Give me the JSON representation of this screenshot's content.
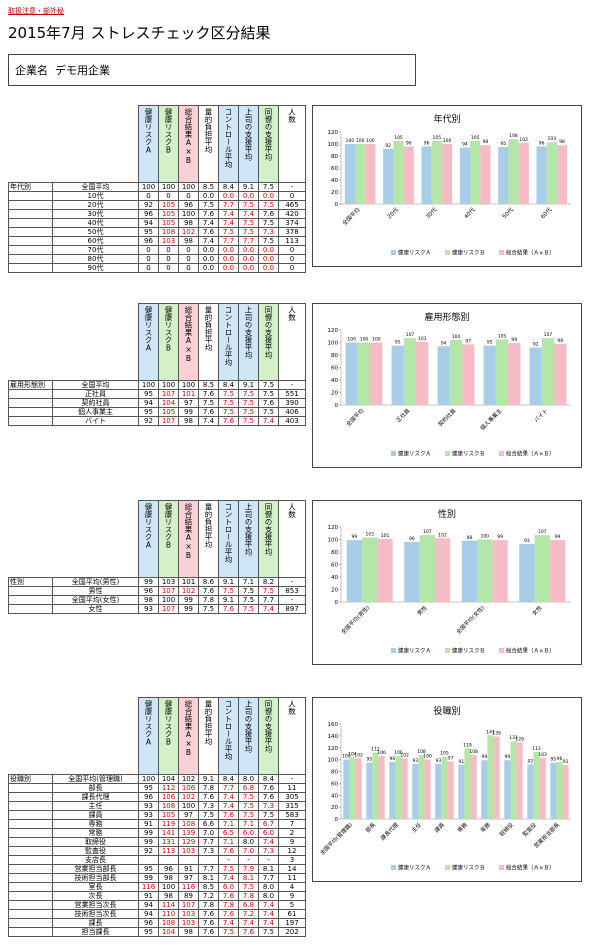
{
  "header": {
    "notice": "取扱注意・部外秘",
    "title": "2015年7月 ストレスチェック区分結果",
    "company_label": "企業名",
    "company": "デモ用企業"
  },
  "sections": [
    {
      "columns": [
        "健康リスクA",
        "健康リスクB",
        "総合結果A×B",
        "量的負担平均",
        "コントロール平均",
        "上司の支援平均",
        "同僚の支援平均",
        "人数"
      ],
      "rows": [
        {
          "group": "年代別",
          "name": "全国平均",
          "cells": [
            "100",
            "100",
            "100",
            "8.5",
            "8.4",
            "9.1",
            "7.5",
            "-"
          ],
          "red": []
        },
        {
          "name": "10代",
          "cells": [
            "0",
            "0",
            "0",
            "0.0",
            "0.0",
            "0.0",
            "0.0",
            "0"
          ],
          "red": [
            4,
            5,
            6
          ]
        },
        {
          "name": "20代",
          "cells": [
            "92",
            "105",
            "96",
            "7.5",
            "7.7",
            "7.5",
            "7.5",
            "465"
          ],
          "red": [
            1,
            4,
            5,
            6
          ]
        },
        {
          "name": "30代",
          "cells": [
            "96",
            "105",
            "100",
            "7.6",
            "7.4",
            "7.4",
            "7.6",
            "420"
          ],
          "red": [
            1,
            4,
            5
          ]
        },
        {
          "name": "40代",
          "cells": [
            "94",
            "105",
            "98",
            "7.4",
            "7.4",
            "7.5",
            "7.5",
            "374"
          ],
          "red": [
            1,
            4,
            5
          ]
        },
        {
          "name": "50代",
          "cells": [
            "95",
            "108",
            "102",
            "7.6",
            "7.5",
            "7.5",
            "7.3",
            "378"
          ],
          "red": [
            1,
            2,
            4,
            5,
            6
          ]
        },
        {
          "name": "60代",
          "cells": [
            "96",
            "103",
            "98",
            "7.4",
            "7.7",
            "7.7",
            "7.5",
            "113"
          ],
          "red": [
            1,
            4,
            5
          ]
        },
        {
          "name": "70代",
          "cells": [
            "0",
            "0",
            "0",
            "0.0",
            "0.0",
            "0.0",
            "0.0",
            "0"
          ],
          "red": [
            4,
            5,
            6
          ]
        },
        {
          "name": "80代",
          "cells": [
            "0",
            "0",
            "0",
            "0.0",
            "0.0",
            "0.0",
            "0.0",
            "0"
          ],
          "red": [
            4,
            5,
            6
          ]
        },
        {
          "name": "90代",
          "cells": [
            "0",
            "0",
            "0",
            "0.0",
            "0.0",
            "0.0",
            "0.0",
            "0"
          ],
          "red": [
            4,
            5,
            6
          ]
        }
      ]
    },
    {
      "columns": [
        "健康リスクA",
        "健康リスクB",
        "総合結果A×B",
        "量的負担平均",
        "コントロール平均",
        "上司の支援平均",
        "同僚の支援平均",
        "人数"
      ],
      "rows": [
        {
          "group": "雇用形態別",
          "name": "全国平均",
          "cells": [
            "100",
            "100",
            "100",
            "8.5",
            "8.4",
            "9.1",
            "7.5",
            "-"
          ],
          "red": []
        },
        {
          "name": "正社員",
          "cells": [
            "95",
            "107",
            "101",
            "7.6",
            "7.5",
            "7.5",
            "7.5",
            "551"
          ],
          "red": [
            1,
            2,
            4,
            5
          ]
        },
        {
          "name": "契約社員",
          "cells": [
            "94",
            "104",
            "97",
            "7.5",
            "7.5",
            "7.5",
            "7.6",
            "390"
          ],
          "red": [
            1,
            4,
            5
          ]
        },
        {
          "name": "個人事業主",
          "cells": [
            "95",
            "105",
            "99",
            "7.6",
            "7.5",
            "7.5",
            "7.5",
            "406"
          ],
          "red": [
            1,
            4,
            5
          ]
        },
        {
          "name": "バイト",
          "cells": [
            "92",
            "107",
            "98",
            "7.4",
            "7.6",
            "7.5",
            "7.4",
            "403"
          ],
          "red": [
            1,
            4,
            5,
            6
          ]
        }
      ]
    },
    {
      "columns": [
        "健康リスクA",
        "健康リスクB",
        "総合結果A×B",
        "量的負担平均",
        "コントロール平均",
        "上司の支援平均",
        "同僚の支援平均",
        "人数"
      ],
      "rows": [
        {
          "group": "性別",
          "name": "全国平均(男性)",
          "cells": [
            "99",
            "103",
            "101",
            "8.6",
            "9.1",
            "7.1",
            "8.2",
            "-"
          ],
          "red": []
        },
        {
          "name": "男性",
          "cells": [
            "96",
            "107",
            "102",
            "7.6",
            "7.5",
            "7.5",
            "7.5",
            "853"
          ],
          "red": [
            1,
            2,
            4,
            6
          ]
        },
        {
          "name": "全国平均(女性)",
          "cells": [
            "98",
            "100",
            "99",
            "7.8",
            "9.1",
            "7.5",
            "7.7",
            "-"
          ],
          "red": []
        },
        {
          "name": "女性",
          "cells": [
            "93",
            "107",
            "99",
            "7.5",
            "7.6",
            "7.5",
            "7.4",
            "897"
          ],
          "red": [
            1,
            4,
            5,
            6
          ]
        }
      ]
    },
    {
      "columns": [
        "健康リスクA",
        "健康リスクB",
        "総合結果A×B",
        "量的負担平均",
        "コントロール平均",
        "上司の支援平均",
        "同僚の支援平均",
        "人数"
      ],
      "rows": [
        {
          "group": "役職別",
          "name": "全国平均(管理職)",
          "cells": [
            "100",
            "104",
            "102",
            "9.1",
            "8.4",
            "8.0",
            "8.4",
            "-"
          ],
          "red": []
        },
        {
          "name": "部長",
          "cells": [
            "95",
            "112",
            "106",
            "7.8",
            "7.7",
            "6.8",
            "7.6",
            "11"
          ],
          "red": [
            1,
            2,
            4,
            5
          ]
        },
        {
          "name": "課長代理",
          "cells": [
            "96",
            "106",
            "102",
            "7.6",
            "7.4",
            "7.5",
            "7.6",
            "305"
          ],
          "red": [
            1,
            2,
            4,
            5
          ]
        },
        {
          "name": "主任",
          "cells": [
            "93",
            "108",
            "100",
            "7.3",
            "7.4",
            "7.5",
            "7.3",
            "315"
          ],
          "red": [
            1,
            4,
            5,
            6
          ]
        },
        {
          "name": "課員",
          "cells": [
            "93",
            "105",
            "97",
            "7.5",
            "7.6",
            "7.5",
            "7.5",
            "583"
          ],
          "red": [
            1,
            4,
            5
          ]
        },
        {
          "name": "専務",
          "cells": [
            "91",
            "119",
            "108",
            "6.6",
            "7.1",
            "7.1",
            "6.7",
            "7"
          ],
          "red": [
            1,
            2,
            4,
            5,
            6
          ]
        },
        {
          "name": "常務",
          "cells": [
            "99",
            "141",
            "139",
            "7.0",
            "6.5",
            "6.0",
            "6.0",
            "2"
          ],
          "red": [
            1,
            2,
            4,
            5,
            6
          ]
        },
        {
          "name": "取締役",
          "cells": [
            "99",
            "131",
            "129",
            "7.7",
            "7.1",
            "8.0",
            "7.4",
            "9"
          ],
          "red": [
            1,
            2,
            4,
            6
          ]
        },
        {
          "name": "監査役",
          "cells": [
            "92",
            "113",
            "103",
            "7.3",
            "7.6",
            "7.0",
            "7.3",
            "12"
          ],
          "red": [
            1,
            2,
            4,
            5,
            6
          ]
        },
        {
          "name": "支店長",
          "cells": [
            null,
            null,
            null,
            null,
            "-",
            "-",
            "-",
            "3"
          ],
          "red": []
        },
        {
          "name": "営業担当部長",
          "cells": [
            "95",
            "96",
            "91",
            "7.7",
            "7.5",
            "7.9",
            "8.1",
            "14"
          ],
          "red": [
            4,
            5
          ]
        },
        {
          "name": "技術担当部長",
          "cells": [
            "99",
            "98",
            "97",
            "8.1",
            "7.4",
            "8.1",
            "7.7",
            "11"
          ],
          "red": [
            4,
            5
          ]
        },
        {
          "name": "室長",
          "cells": [
            "116",
            "100",
            "116",
            "8.5",
            "6.0",
            "7.5",
            "8.0",
            "4"
          ],
          "red": [
            0,
            2,
            4,
            5
          ]
        },
        {
          "name": "次長",
          "cells": [
            "91",
            "98",
            "89",
            "7.2",
            "7.6",
            "7.8",
            "8.0",
            "9"
          ],
          "red": [
            4,
            5
          ]
        },
        {
          "name": "営業担当次長",
          "cells": [
            "94",
            "114",
            "107",
            "7.8",
            "7.8",
            "6.8",
            "7.4",
            "5"
          ],
          "red": [
            1,
            2,
            4,
            5,
            6
          ]
        },
        {
          "name": "技術担当次長",
          "cells": [
            "94",
            "110",
            "103",
            "7.6",
            "7.6",
            "7.2",
            "7.4",
            "61"
          ],
          "red": [
            1,
            2,
            4,
            5,
            6
          ]
        },
        {
          "name": "課長",
          "cells": [
            "96",
            "108",
            "103",
            "7.6",
            "7.4",
            "7.4",
            "7.4",
            "197"
          ],
          "red": [
            1,
            2,
            4,
            5,
            6
          ]
        },
        {
          "name": "担当課長",
          "cells": [
            "95",
            "104",
            "98",
            "7.6",
            "7.5",
            "7.6",
            "7.5",
            "202"
          ],
          "red": [
            1,
            4,
            5
          ]
        }
      ]
    }
  ],
  "chart_data": [
    {
      "type": "bar",
      "title": "年代別",
      "categories": [
        "全国平均",
        "20代",
        "30代",
        "40代",
        "50代",
        "60代"
      ],
      "series": [
        {
          "name": "健康リスクＡ",
          "color": "#a7cde8",
          "values": [
            100,
            92,
            96,
            94,
            95,
            96
          ]
        },
        {
          "name": "健康リスクＢ",
          "color": "#b4e6a8",
          "values": [
            100,
            105,
            105,
            105,
            108,
            103
          ]
        },
        {
          "name": "総合結果（Ａ×Ｂ）",
          "color": "#f6bcc6",
          "values": [
            100,
            96,
            100,
            98,
            102,
            98
          ]
        }
      ],
      "ylim": [
        0,
        120
      ],
      "yticks": [
        0,
        20,
        40,
        60,
        80,
        100,
        120
      ]
    },
    {
      "type": "bar",
      "title": "雇用形態別",
      "categories": [
        "全国平均",
        "正社員",
        "契約社員",
        "個人事業主",
        "バイト"
      ],
      "series": [
        {
          "name": "健康リスクＡ",
          "color": "#a7cde8",
          "values": [
            100,
            95,
            94,
            95,
            92
          ]
        },
        {
          "name": "健康リスクＢ",
          "color": "#b4e6a8",
          "values": [
            100,
            107,
            104,
            105,
            107
          ]
        },
        {
          "name": "総合結果（Ａ×Ｂ）",
          "color": "#f6bcc6",
          "values": [
            100,
            101,
            97,
            99,
            98
          ]
        }
      ],
      "ylim": [
        0,
        120
      ],
      "yticks": [
        0,
        20,
        40,
        60,
        80,
        100,
        120
      ]
    },
    {
      "type": "bar",
      "title": "性別",
      "categories": [
        "全国平均(男性)",
        "男性",
        "全国平均(女性)",
        "女性"
      ],
      "series": [
        {
          "name": "健康リスクＡ",
          "color": "#a7cde8",
          "values": [
            99,
            96,
            98,
            93
          ]
        },
        {
          "name": "健康リスクＢ",
          "color": "#b4e6a8",
          "values": [
            103,
            107,
            100,
            107
          ]
        },
        {
          "name": "総合結果（Ａ×Ｂ）",
          "color": "#f6bcc6",
          "values": [
            101,
            102,
            99,
            99
          ]
        }
      ],
      "ylim": [
        0,
        120
      ],
      "yticks": [
        0,
        20,
        40,
        60,
        80,
        100,
        120
      ]
    },
    {
      "type": "bar",
      "title": "役職別",
      "categories": [
        "全国平均(管理職)",
        "部長",
        "課長代理",
        "主任",
        "課員",
        "専務",
        "常務",
        "取締役",
        "監査役",
        "営業担当部長"
      ],
      "series": [
        {
          "name": "健康リスクＡ",
          "color": "#a7cde8",
          "values": [
            100,
            95,
            96,
            93,
            93,
            91,
            99,
            99,
            92,
            95
          ]
        },
        {
          "name": "健康リスクＢ",
          "color": "#b4e6a8",
          "values": [
            104,
            112,
            106,
            108,
            105,
            119,
            141,
            131,
            113,
            96
          ]
        },
        {
          "name": "総合結果（Ａ×Ｂ）",
          "color": "#f6bcc6",
          "values": [
            102,
            106,
            102,
            100,
            97,
            108,
            139,
            129,
            103,
            91
          ]
        }
      ],
      "ylim": [
        0,
        160
      ],
      "yticks": [
        0,
        20,
        40,
        60,
        80,
        100,
        120,
        140,
        160
      ]
    }
  ]
}
